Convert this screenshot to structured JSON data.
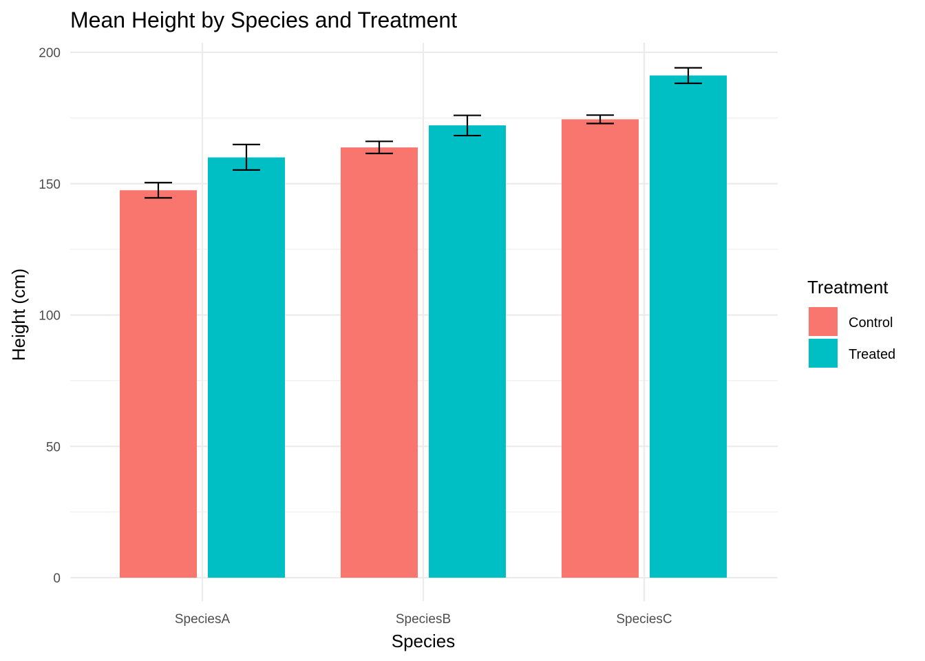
{
  "chart_data": {
    "type": "bar",
    "title": "Mean Height by Species and Treatment",
    "xlabel": "Species",
    "ylabel": "Height (cm)",
    "categories": [
      "SpeciesA",
      "SpeciesB",
      "SpeciesC"
    ],
    "ylim": [
      0,
      200
    ],
    "yticks": [
      "0",
      "50",
      "100",
      "150",
      "200"
    ],
    "grid": true,
    "legend": {
      "title": "Treatment",
      "position": "right"
    },
    "series": [
      {
        "name": "Control",
        "color": "#F8766D",
        "values": [
          147.5,
          163.8,
          174.5
        ],
        "error_low": [
          144.6,
          161.5,
          172.9
        ],
        "error_high": [
          150.4,
          166.1,
          176.1
        ]
      },
      {
        "name": "Treated",
        "color": "#00BFC4",
        "values": [
          160.0,
          172.2,
          191.2
        ],
        "error_low": [
          155.2,
          168.3,
          188.2
        ],
        "error_high": [
          164.9,
          176.0,
          194.1
        ]
      }
    ]
  }
}
